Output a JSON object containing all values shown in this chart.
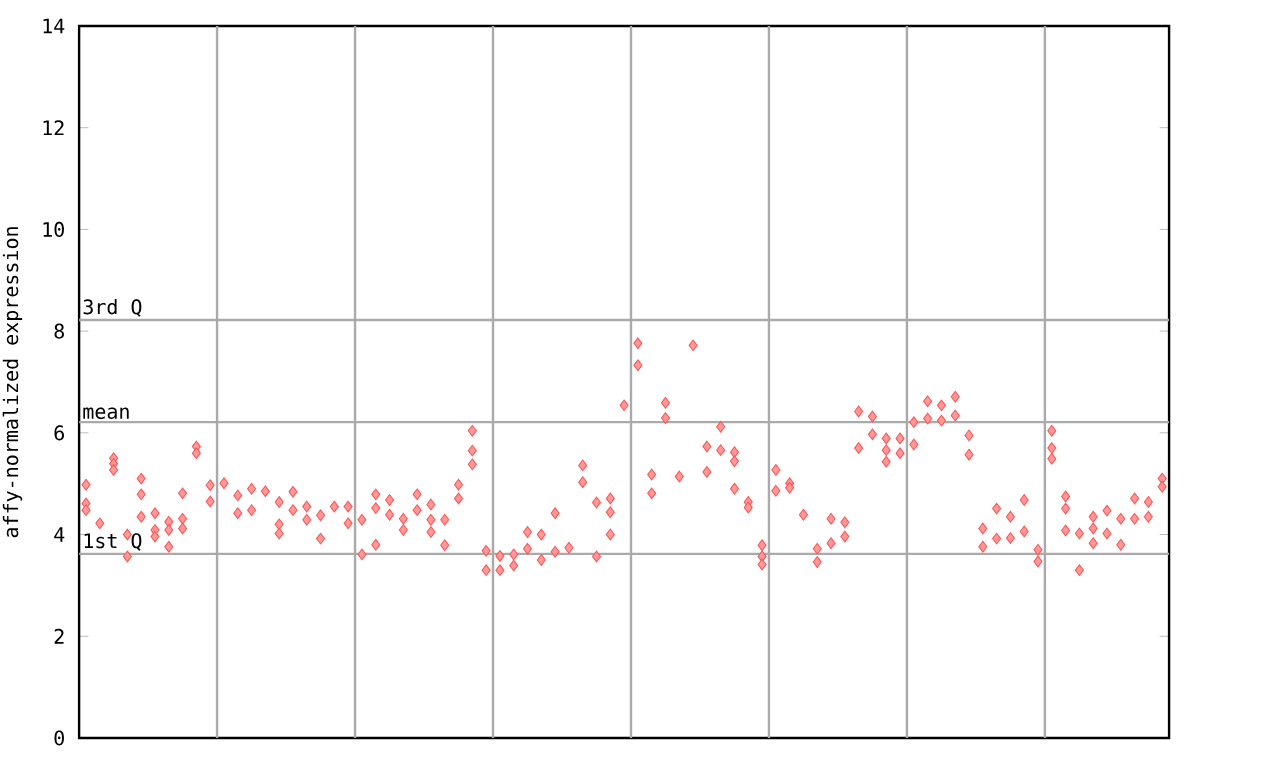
{
  "chart_data": {
    "type": "scatter",
    "ylabel": "affy-normalized expression",
    "marker": "diamond",
    "categories": [
      null,
      null,
      null,
      null,
      null,
      null,
      null,
      null,
      null,
      null,
      null,
      null,
      null,
      null,
      null,
      null,
      null,
      null,
      null,
      null,
      null,
      null,
      null,
      null,
      null,
      null,
      null,
      null,
      null,
      null,
      null,
      null,
      null,
      null,
      null,
      null,
      null,
      null,
      null,
      null,
      null,
      null,
      null,
      null,
      null,
      null,
      null,
      null,
      null,
      null,
      null,
      null,
      null,
      null,
      null,
      null,
      null,
      null,
      null,
      null,
      null,
      null,
      null,
      null,
      null,
      null,
      null,
      null,
      null,
      null,
      null,
      null,
      null,
      null,
      null,
      null,
      null,
      null,
      null
    ],
    "series": [
      {
        "color": "#ff5555",
        "values": [
          4.98,
          4.22,
          5.5,
          4.0,
          5.1,
          4.42,
          4.25,
          4.81,
          5.73,
          4.97,
          5.01,
          4.77,
          4.9,
          4.85,
          4.64,
          4.84,
          4.55,
          4.38,
          4.55,
          4.55,
          4.29,
          4.79,
          4.68,
          4.31,
          4.79,
          4.59,
          4.29,
          4.98,
          6.04,
          3.68,
          3.58,
          3.61,
          4.05,
          4.0,
          4.42,
          3.74,
          5.36,
          4.63,
          4.71,
          6.54,
          7.76,
          5.18,
          6.59,
          5.14,
          7.72,
          5.73,
          6.12,
          5.62,
          4.64,
          3.79,
          5.27,
          5.01,
          4.39,
          3.72,
          4.31,
          4.24,
          6.42,
          6.32,
          5.89,
          5.89,
          6.21,
          6.62,
          6.54,
          6.71,
          5.95,
          4.12,
          4.51,
          4.35,
          4.68,
          3.7,
          6.04,
          4.75,
          4.02,
          4.35,
          4.47,
          4.31,
          4.71,
          4.64,
          5.1
        ]
      },
      {
        "color": "#ff5555",
        "values": [
          4.61,
          null,
          5.39,
          3.57,
          4.79,
          4.09,
          4.09,
          4.31,
          5.6,
          4.65,
          null,
          4.42,
          4.48,
          null,
          4.2,
          4.48,
          4.29,
          3.92,
          null,
          4.22,
          3.61,
          4.52,
          4.39,
          4.09,
          4.48,
          4.29,
          3.79,
          4.71,
          5.65,
          3.3,
          3.3,
          3.39,
          3.72,
          3.5,
          3.66,
          null,
          5.03,
          3.57,
          4.44,
          null,
          7.33,
          4.81,
          6.29,
          null,
          null,
          5.23,
          5.66,
          5.44,
          4.53,
          3.57,
          4.86,
          4.92,
          null,
          3.46,
          3.83,
          3.96,
          5.7,
          5.97,
          5.66,
          5.6,
          5.77,
          6.28,
          6.24,
          6.34,
          5.57,
          3.76,
          3.92,
          3.93,
          4.06,
          3.47,
          5.7,
          4.51,
          3.3,
          4.12,
          4.02,
          3.8,
          4.31,
          4.35,
          4.94
        ]
      },
      {
        "color": "#ff5555",
        "values": [
          4.48,
          null,
          5.27,
          null,
          4.35,
          3.96,
          3.76,
          4.12,
          null,
          null,
          null,
          null,
          null,
          null,
          4.02,
          null,
          null,
          null,
          null,
          null,
          null,
          3.8,
          null,
          null,
          null,
          4.05,
          null,
          null,
          5.38,
          null,
          null,
          null,
          null,
          null,
          null,
          null,
          null,
          null,
          4.0,
          null,
          null,
          null,
          null,
          null,
          null,
          null,
          null,
          4.9,
          null,
          3.41,
          null,
          null,
          null,
          null,
          null,
          null,
          null,
          null,
          5.43,
          null,
          null,
          null,
          null,
          null,
          null,
          null,
          null,
          null,
          null,
          null,
          5.49,
          4.08,
          null,
          3.83,
          null,
          null,
          null,
          null,
          null
        ]
      }
    ],
    "ylim": [
      0,
      14
    ],
    "yticks": [
      0,
      2,
      4,
      6,
      8,
      10,
      12,
      14
    ],
    "tick_labels": "y",
    "ref_lines": [
      {
        "axis": "y",
        "value": 8.22,
        "label": "3rd Q",
        "color": "#aaaaaa"
      },
      {
        "axis": "y",
        "value": 6.21,
        "label": "mean",
        "color": "#aaaaaa"
      },
      {
        "axis": "y",
        "value": 3.62,
        "label": "1st Q",
        "color": "#aaaaaa"
      }
    ]
  }
}
